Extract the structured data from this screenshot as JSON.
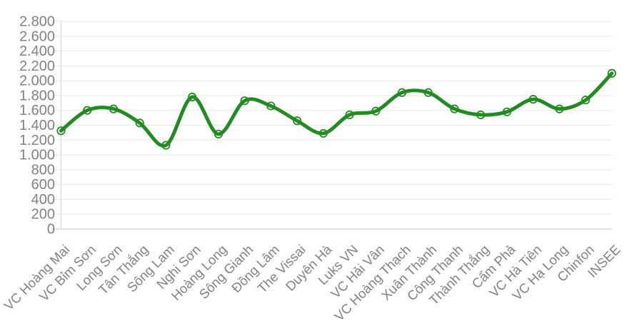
{
  "chart_data": {
    "type": "line",
    "categories": [
      "VC Hoàng Mai",
      "VC Bỉm Sơn",
      "Long Sơn",
      "Tân Thắng",
      "Sông Lam",
      "Nghi Sơn",
      "Hoàng Long",
      "Sông Gianh",
      "Đồng Lâm",
      "The Vissai",
      "Duyên Hà",
      "Luks VN",
      "VC Hải Vân",
      "VC Hoàng Thạch",
      "Xuân Thành",
      "Công Thanh",
      "Thành Thắng",
      "Cẩm Phả",
      "VC Hà Tiên",
      "VC Hạ Long",
      "Chinfon",
      "INSEE"
    ],
    "values": [
      1325,
      1600,
      1620,
      1430,
      1130,
      1780,
      1280,
      1730,
      1660,
      1460,
      1290,
      1540,
      1590,
      1840,
      1840,
      1620,
      1540,
      1580,
      1750,
      1620,
      1740,
      2100
    ],
    "title": "",
    "xlabel": "",
    "ylabel": "",
    "ylim": [
      0,
      2800
    ],
    "ytick_step": 200,
    "ytick_labels": [
      "0",
      "200",
      "400",
      "600",
      "800",
      "1.000",
      "1.200",
      "1.400",
      "1.600",
      "1.800",
      "2.000",
      "2.200",
      "2.400",
      "2.600",
      "2.800"
    ],
    "grid": true,
    "legend": false,
    "line_color": "#228B22",
    "marker_style": "hollow-circle",
    "grid_color": "#e8e8e8",
    "zero_line_color": "#c4c4c4",
    "y_axis_line_color": "#d6d6d6",
    "tick_text_color": "#828282",
    "background_color": "#ffffff"
  }
}
